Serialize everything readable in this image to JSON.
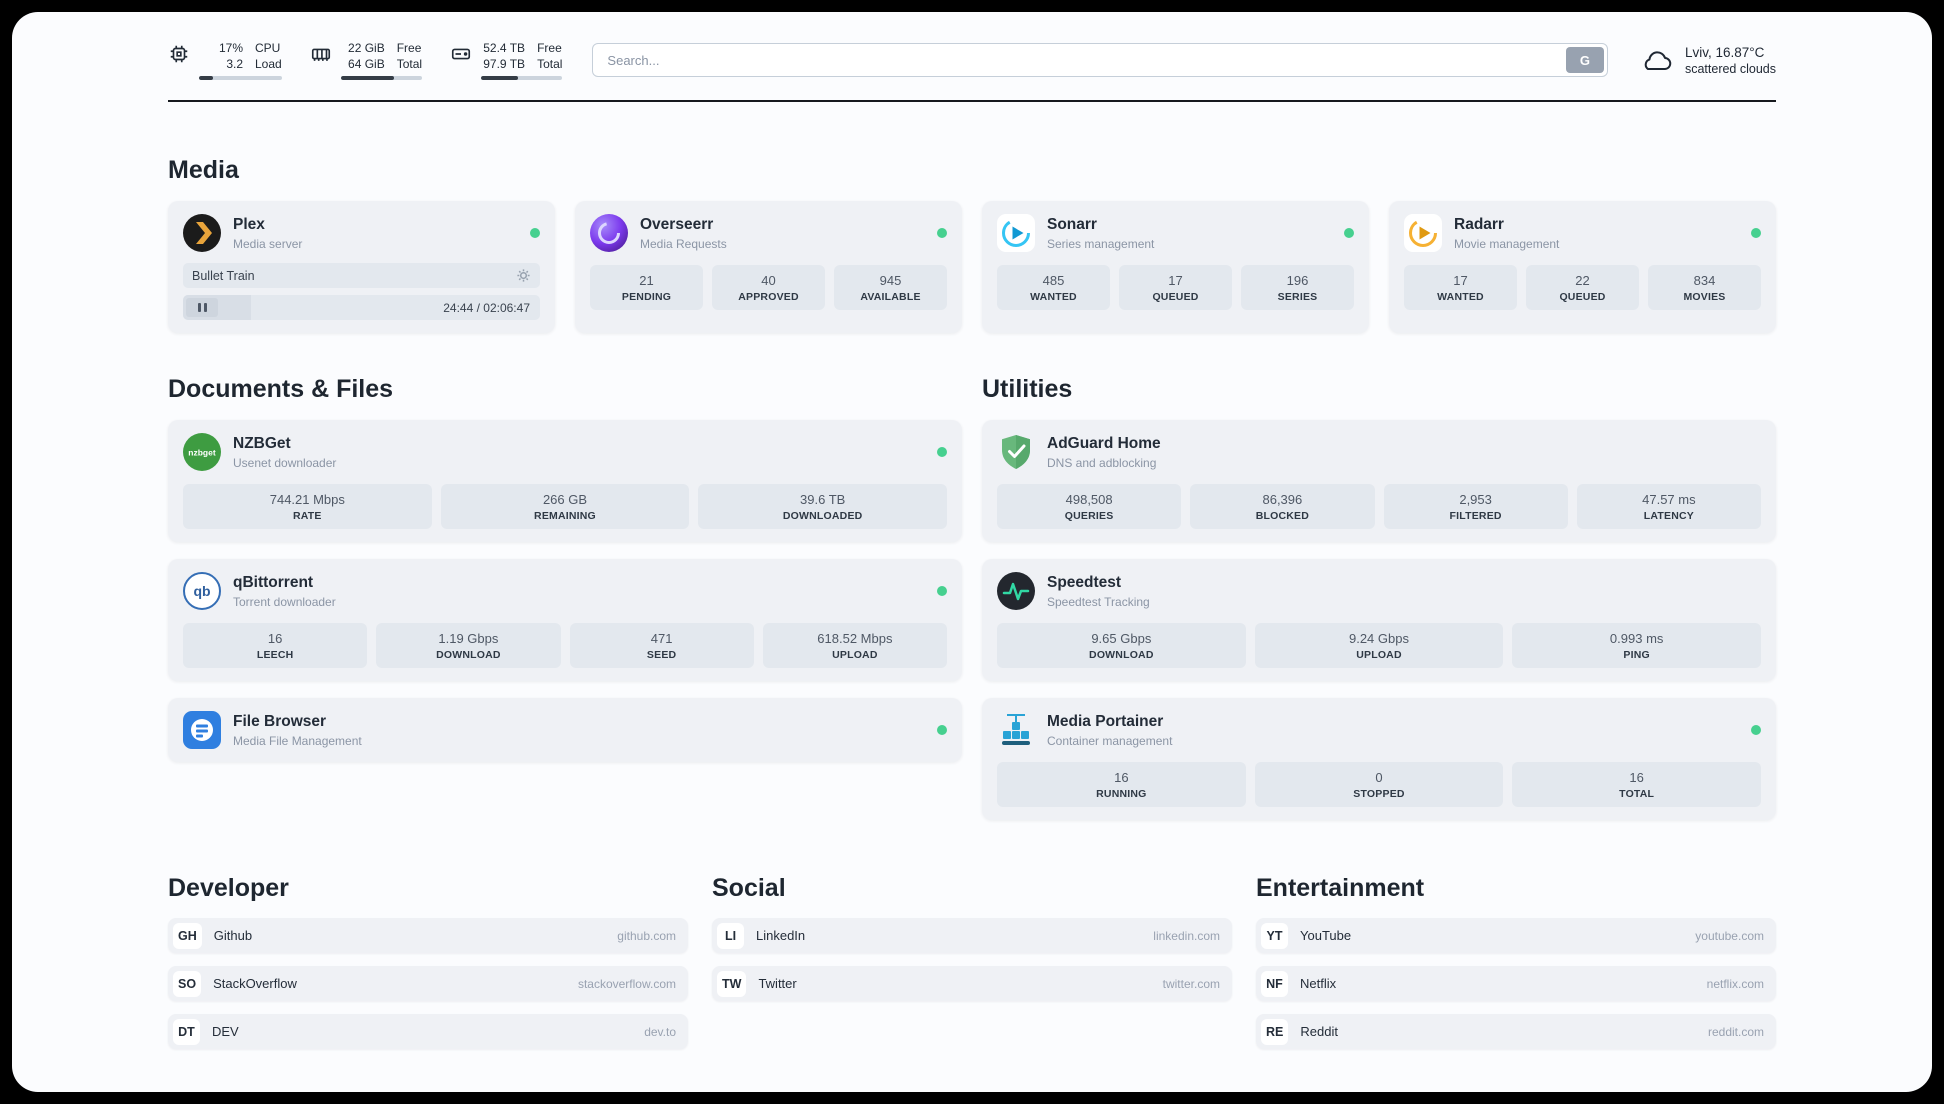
{
  "colors": {
    "status_online": "#46d08f",
    "accent_plex": "#e8a43b"
  },
  "header": {
    "cpu": {
      "value": "17%",
      "secondary": "3.2",
      "label_top": "CPU",
      "label_bottom": "Load",
      "progress_pct": 17
    },
    "ram": {
      "value": "22 GiB",
      "secondary": "64 GiB",
      "label_top": "Free",
      "label_bottom": "Total",
      "progress_pct": 66
    },
    "disk": {
      "value": "52.4 TB",
      "secondary": "97.9 TB",
      "label_top": "Free",
      "label_bottom": "Total",
      "progress_pct": 46
    },
    "search": {
      "placeholder": "Search...",
      "engine_button": "G"
    },
    "weather": {
      "location": "Lviv, 16.87°C",
      "condition": "scattered clouds"
    }
  },
  "sections": {
    "media": {
      "title": "Media"
    },
    "documents": {
      "title": "Documents & Files"
    },
    "utilities": {
      "title": "Utilities"
    },
    "developer": {
      "title": "Developer"
    },
    "social": {
      "title": "Social"
    },
    "entertainment": {
      "title": "Entertainment"
    }
  },
  "apps": {
    "plex": {
      "name": "Plex",
      "subtitle": "Media server",
      "online": true,
      "now_playing": "Bullet Train",
      "time_display": "24:44 / 02:06:47",
      "progress_pct": 19
    },
    "overseerr": {
      "name": "Overseerr",
      "subtitle": "Media Requests",
      "online": true,
      "stats": [
        {
          "value": "21",
          "label": "PENDING"
        },
        {
          "value": "40",
          "label": "APPROVED"
        },
        {
          "value": "945",
          "label": "AVAILABLE"
        }
      ]
    },
    "sonarr": {
      "name": "Sonarr",
      "subtitle": "Series management",
      "online": true,
      "stats": [
        {
          "value": "485",
          "label": "WANTED"
        },
        {
          "value": "17",
          "label": "QUEUED"
        },
        {
          "value": "196",
          "label": "SERIES"
        }
      ]
    },
    "radarr": {
      "name": "Radarr",
      "subtitle": "Movie management",
      "online": true,
      "stats": [
        {
          "value": "17",
          "label": "WANTED"
        },
        {
          "value": "22",
          "label": "QUEUED"
        },
        {
          "value": "834",
          "label": "MOVIES"
        }
      ]
    },
    "nzbget": {
      "name": "NZBGet",
      "subtitle": "Usenet downloader",
      "online": true,
      "stats": [
        {
          "value": "744.21 Mbps",
          "label": "RATE"
        },
        {
          "value": "266 GB",
          "label": "REMAINING"
        },
        {
          "value": "39.6 TB",
          "label": "DOWNLOADED"
        }
      ]
    },
    "qbittorrent": {
      "name": "qBittorrent",
      "subtitle": "Torrent downloader",
      "online": true,
      "stats": [
        {
          "value": "16",
          "label": "LEECH"
        },
        {
          "value": "1.19 Gbps",
          "label": "DOWNLOAD"
        },
        {
          "value": "471",
          "label": "SEED"
        },
        {
          "value": "618.52 Mbps",
          "label": "UPLOAD"
        }
      ]
    },
    "filebrowser": {
      "name": "File Browser",
      "subtitle": "Media File Management",
      "online": true
    },
    "adguard": {
      "name": "AdGuard Home",
      "subtitle": "DNS and adblocking",
      "stats": [
        {
          "value": "498,508",
          "label": "QUERIES"
        },
        {
          "value": "86,396",
          "label": "BLOCKED"
        },
        {
          "value": "2,953",
          "label": "FILTERED"
        },
        {
          "value": "47.57 ms",
          "label": "LATENCY"
        }
      ]
    },
    "speedtest": {
      "name": "Speedtest",
      "subtitle": "Speedtest Tracking",
      "stats": [
        {
          "value": "9.65 Gbps",
          "label": "DOWNLOAD"
        },
        {
          "value": "9.24 Gbps",
          "label": "UPLOAD"
        },
        {
          "value": "0.993 ms",
          "label": "PING"
        }
      ]
    },
    "portainer": {
      "name": "Media Portainer",
      "subtitle": "Container management",
      "online": true,
      "stats": [
        {
          "value": "16",
          "label": "RUNNING"
        },
        {
          "value": "0",
          "label": "STOPPED"
        },
        {
          "value": "16",
          "label": "TOTAL"
        }
      ]
    }
  },
  "links": {
    "developer": [
      {
        "abbr": "GH",
        "name": "Github",
        "url": "github.com"
      },
      {
        "abbr": "SO",
        "name": "StackOverflow",
        "url": "stackoverflow.com"
      },
      {
        "abbr": "DT",
        "name": "DEV",
        "url": "dev.to"
      }
    ],
    "social": [
      {
        "abbr": "LI",
        "name": "LinkedIn",
        "url": "linkedin.com"
      },
      {
        "abbr": "TW",
        "name": "Twitter",
        "url": "twitter.com"
      }
    ],
    "entertainment": [
      {
        "abbr": "YT",
        "name": "YouTube",
        "url": "youtube.com"
      },
      {
        "abbr": "NF",
        "name": "Netflix",
        "url": "netflix.com"
      },
      {
        "abbr": "RE",
        "name": "Reddit",
        "url": "reddit.com"
      }
    ]
  }
}
